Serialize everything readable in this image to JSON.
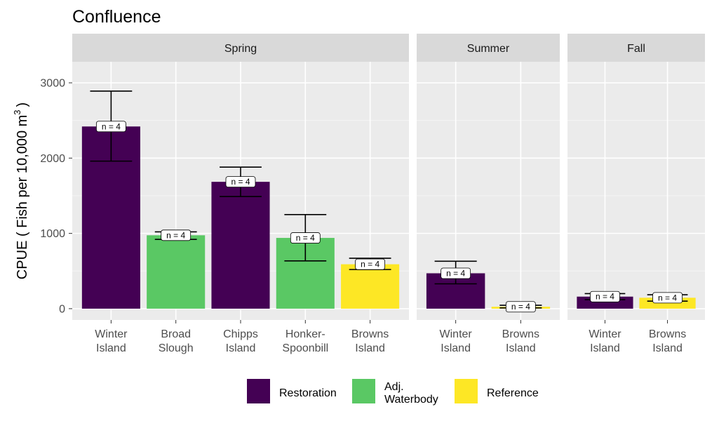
{
  "chart_data": {
    "type": "bar",
    "title": "Confluence",
    "ylabel": "CPUE ( Fish per 10,000 m",
    "ylabel_superscript": "3",
    "ylabel_close": ")",
    "ylim": [
      -150,
      3280
    ],
    "yticks": [
      0,
      1000,
      2000,
      3000
    ],
    "grid": true,
    "legend_position": "bottom",
    "colors": {
      "Restoration": "#440154",
      "Adj. Waterbody": "#5ac864",
      "Reference": "#fde725"
    },
    "legend": [
      {
        "key": "Restoration",
        "lines": [
          "Restoration"
        ]
      },
      {
        "key": "Adj. Waterbody",
        "lines": [
          "Adj.",
          "Waterbody"
        ]
      },
      {
        "key": "Reference",
        "lines": [
          "Reference"
        ]
      }
    ],
    "facets": [
      {
        "label": "Spring",
        "bars": [
          {
            "category": [
              "Winter",
              "Island"
            ],
            "group": "Restoration",
            "value": 2420,
            "err_low": 1960,
            "err_high": 2890,
            "n_label": "n =  4"
          },
          {
            "category": [
              "Broad",
              "Slough"
            ],
            "group": "Adj. Waterbody",
            "value": 975,
            "err_low": 920,
            "err_high": 1020,
            "n_label": "n =  4"
          },
          {
            "category": [
              "Chipps",
              "Island"
            ],
            "group": "Restoration",
            "value": 1685,
            "err_low": 1490,
            "err_high": 1880,
            "n_label": "n =  4"
          },
          {
            "category": [
              "Honker-",
              "Spoonbill"
            ],
            "group": "Adj. Waterbody",
            "value": 940,
            "err_low": 635,
            "err_high": 1250,
            "n_label": "n =  4"
          },
          {
            "category": [
              "Browns",
              "Island"
            ],
            "group": "Reference",
            "value": 590,
            "err_low": 520,
            "err_high": 670,
            "n_label": "n =  4"
          }
        ]
      },
      {
        "label": "Summer",
        "bars": [
          {
            "category": [
              "Winter",
              "Island"
            ],
            "group": "Restoration",
            "value": 470,
            "err_low": 330,
            "err_high": 630,
            "n_label": "n =  4"
          },
          {
            "category": [
              "Browns",
              "Island"
            ],
            "group": "Reference",
            "value": 25,
            "err_low": 10,
            "err_high": 45,
            "n_label": "n =  4"
          }
        ]
      },
      {
        "label": "Fall",
        "bars": [
          {
            "category": [
              "Winter",
              "Island"
            ],
            "group": "Restoration",
            "value": 160,
            "err_low": 120,
            "err_high": 200,
            "n_label": "n =  4"
          },
          {
            "category": [
              "Browns",
              "Island"
            ],
            "group": "Reference",
            "value": 145,
            "err_low": 100,
            "err_high": 185,
            "n_label": "n =  4"
          }
        ]
      }
    ]
  }
}
